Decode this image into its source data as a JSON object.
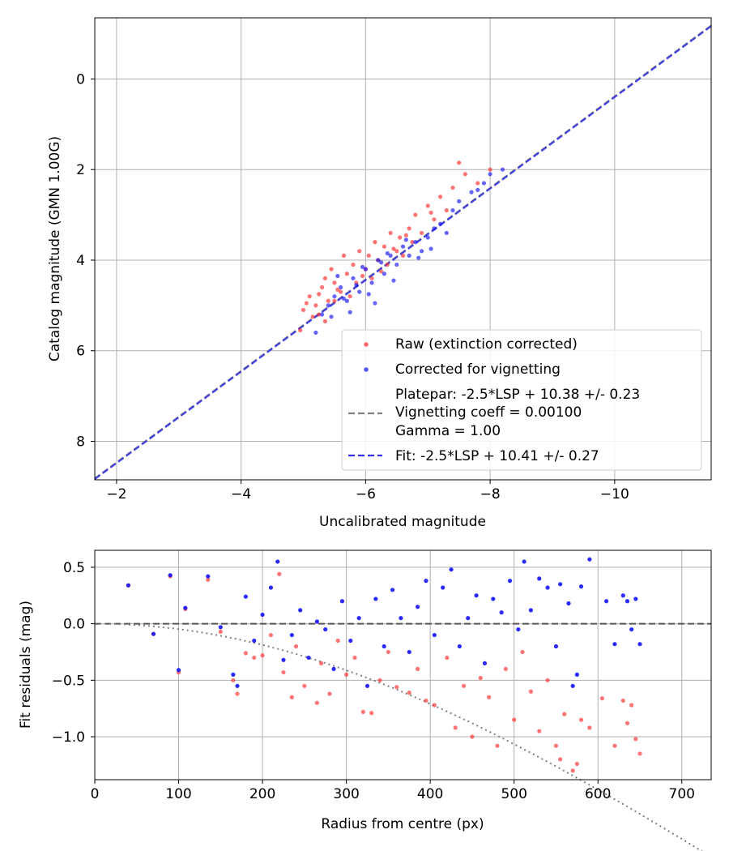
{
  "chart_data": [
    {
      "type": "scatter",
      "xlabel": "Uncalibrated magnitude",
      "ylabel": "Catalog magnitude (GMN 1.00G)",
      "xlim": [
        -1.65,
        -11.55
      ],
      "ylim": [
        8.85,
        -1.35
      ],
      "x_ticks": [
        -2,
        -4,
        -6,
        -8,
        -10
      ],
      "x_tick_labels": [
        "−2",
        "−4",
        "−6",
        "−8",
        "−10"
      ],
      "y_ticks": [
        0,
        2,
        4,
        6,
        8
      ],
      "y_tick_labels": [
        "0",
        "2",
        "4",
        "6",
        "8"
      ],
      "grid": true,
      "legend_position": "lower-right",
      "legend": {
        "raw": "Raw (extinction corrected)",
        "corrected": "Corrected for vignetting",
        "platepar_lines": [
          "Platepar: -2.5*LSP + 10.38 +/- 0.23",
          "Vignetting coeff = 0.00100",
          "Gamma = 1.00"
        ],
        "fit": "Fit: -2.5*LSP + 10.41 +/- 0.27"
      },
      "lines": [
        {
          "name": "Platepar",
          "slope": -2.5,
          "intercept": 10.38,
          "color": "#7f7f7f",
          "style": "dashed"
        },
        {
          "name": "Fit",
          "slope": -2.5,
          "intercept": 10.41,
          "color": "#3333ee",
          "style": "dashed"
        }
      ],
      "series": [
        {
          "name": "Raw (extinction corrected)",
          "color": "#ff2a2a",
          "points": [
            [
              -5.0,
              5.1
            ],
            [
              -5.1,
              4.8
            ],
            [
              -5.2,
              5.0
            ],
            [
              -5.3,
              4.6
            ],
            [
              -5.25,
              5.2
            ],
            [
              -5.35,
              4.4
            ],
            [
              -5.4,
              4.9
            ],
            [
              -5.45,
              4.2
            ],
            [
              -5.5,
              4.5
            ],
            [
              -5.6,
              4.7
            ],
            [
              -5.65,
              3.9
            ],
            [
              -5.7,
              4.3
            ],
            [
              -5.75,
              4.8
            ],
            [
              -5.8,
              4.1
            ],
            [
              -5.85,
              4.5
            ],
            [
              -5.9,
              3.8
            ],
            [
              -6.0,
              4.2
            ],
            [
              -6.05,
              3.9
            ],
            [
              -6.1,
              4.4
            ],
            [
              -6.15,
              3.6
            ],
            [
              -6.2,
              4.0
            ],
            [
              -6.3,
              3.7
            ],
            [
              -6.35,
              4.1
            ],
            [
              -6.4,
              3.4
            ],
            [
              -6.5,
              3.8
            ],
            [
              -6.55,
              3.5
            ],
            [
              -6.6,
              3.9
            ],
            [
              -6.7,
              3.3
            ],
            [
              -6.75,
              3.6
            ],
            [
              -6.8,
              3.0
            ],
            [
              -6.9,
              3.4
            ],
            [
              -7.0,
              2.8
            ],
            [
              -7.1,
              3.1
            ],
            [
              -7.2,
              2.6
            ],
            [
              -7.3,
              2.9
            ],
            [
              -7.4,
              2.4
            ],
            [
              -7.5,
              1.85
            ],
            [
              -7.6,
              2.1
            ],
            [
              -7.8,
              2.3
            ],
            [
              -8.0,
              2.0
            ],
            [
              -5.05,
              4.95
            ],
            [
              -5.55,
              4.65
            ],
            [
              -5.95,
              4.35
            ],
            [
              -6.45,
              3.75
            ],
            [
              -6.25,
              4.25
            ],
            [
              -5.35,
              5.35
            ],
            [
              -4.95,
              5.55
            ],
            [
              -5.15,
              5.25
            ],
            [
              -6.65,
              3.45
            ],
            [
              -7.05,
              2.95
            ],
            [
              -5.5,
              4.9
            ],
            [
              -5.25,
              4.75
            ]
          ]
        },
        {
          "name": "Corrected for vignetting",
          "color": "#1414ff",
          "points": [
            [
              -5.2,
              5.6
            ],
            [
              -5.3,
              5.2
            ],
            [
              -5.4,
              5.0
            ],
            [
              -5.5,
              4.8
            ],
            [
              -5.6,
              4.6
            ],
            [
              -5.7,
              4.9
            ],
            [
              -5.8,
              4.4
            ],
            [
              -5.9,
              4.7
            ],
            [
              -6.0,
              4.2
            ],
            [
              -6.1,
              4.5
            ],
            [
              -6.2,
              4.0
            ],
            [
              -6.3,
              4.3
            ],
            [
              -6.4,
              3.9
            ],
            [
              -6.5,
              4.1
            ],
            [
              -6.6,
              3.7
            ],
            [
              -6.7,
              3.9
            ],
            [
              -6.8,
              3.6
            ],
            [
              -6.9,
              3.8
            ],
            [
              -7.0,
              3.5
            ],
            [
              -7.1,
              3.3
            ],
            [
              -7.2,
              3.2
            ],
            [
              -7.3,
              3.4
            ],
            [
              -7.4,
              2.9
            ],
            [
              -7.5,
              2.7
            ],
            [
              -7.7,
              2.5
            ],
            [
              -7.9,
              2.3
            ],
            [
              -8.0,
              2.1
            ],
            [
              -8.2,
              2.0
            ],
            [
              -5.45,
              5.25
            ],
            [
              -5.65,
              4.85
            ],
            [
              -5.85,
              4.55
            ],
            [
              -6.05,
              4.75
            ],
            [
              -6.25,
              4.05
            ],
            [
              -6.45,
              4.45
            ],
            [
              -6.65,
              3.55
            ],
            [
              -6.85,
              3.95
            ],
            [
              -7.05,
              3.75
            ],
            [
              -5.55,
              4.35
            ],
            [
              -5.95,
              4.15
            ],
            [
              -6.35,
              3.85
            ],
            [
              -5.75,
              5.15
            ],
            [
              -6.15,
              4.95
            ],
            [
              -7.8,
              2.45
            ]
          ]
        }
      ]
    },
    {
      "type": "scatter",
      "xlabel": "Radius from centre (px)",
      "ylabel": "Fit residuals (mag)",
      "xlim": [
        0,
        735
      ],
      "ylim": [
        -1.38,
        0.65
      ],
      "x_ticks": [
        0,
        100,
        200,
        300,
        400,
        500,
        600,
        700
      ],
      "x_tick_labels": [
        "0",
        "100",
        "200",
        "300",
        "400",
        "500",
        "600",
        "700"
      ],
      "y_ticks": [
        0.5,
        0.0,
        -0.5,
        -1.0
      ],
      "y_tick_labels": [
        "0.5",
        "0.0",
        "−0.5",
        "−1.0"
      ],
      "grid": true,
      "zero_line": 0,
      "vignetting_curve": {
        "coeff": 0.001,
        "gamma": 1.0,
        "color": "#808080",
        "style": "dotted"
      },
      "series": [
        {
          "name": "Raw",
          "color": "#ff2a2a",
          "points": [
            [
              40,
              0.34
            ],
            [
              70,
              -0.09
            ],
            [
              90,
              0.42
            ],
            [
              100,
              -0.43
            ],
            [
              108,
              0.13
            ],
            [
              135,
              0.39
            ],
            [
              150,
              -0.07
            ],
            [
              165,
              -0.5
            ],
            [
              170,
              -0.62
            ],
            [
              180,
              -0.26
            ],
            [
              190,
              -0.3
            ],
            [
              200,
              -0.28
            ],
            [
              210,
              -0.1
            ],
            [
              220,
              0.44
            ],
            [
              225,
              -0.43
            ],
            [
              235,
              -0.65
            ],
            [
              240,
              -0.2
            ],
            [
              250,
              -0.55
            ],
            [
              265,
              -0.7
            ],
            [
              270,
              -0.35
            ],
            [
              280,
              -0.62
            ],
            [
              290,
              -0.15
            ],
            [
              300,
              -0.45
            ],
            [
              310,
              -0.3
            ],
            [
              320,
              -0.78
            ],
            [
              330,
              -0.79
            ],
            [
              340,
              -0.5
            ],
            [
              350,
              -0.25
            ],
            [
              360,
              -0.56
            ],
            [
              375,
              -0.61
            ],
            [
              385,
              -0.4
            ],
            [
              395,
              -0.68
            ],
            [
              405,
              -0.72
            ],
            [
              420,
              -0.3
            ],
            [
              430,
              -0.92
            ],
            [
              440,
              -0.55
            ],
            [
              450,
              -1.0
            ],
            [
              460,
              -0.48
            ],
            [
              470,
              -0.65
            ],
            [
              480,
              -1.08
            ],
            [
              490,
              -0.4
            ],
            [
              500,
              -0.85
            ],
            [
              510,
              -0.25
            ],
            [
              520,
              -0.6
            ],
            [
              530,
              -0.95
            ],
            [
              540,
              -0.5
            ],
            [
              550,
              -1.08
            ],
            [
              555,
              -1.2
            ],
            [
              560,
              -0.8
            ],
            [
              570,
              -1.3
            ],
            [
              575,
              -1.24
            ],
            [
              580,
              -0.85
            ],
            [
              590,
              -0.92
            ],
            [
              605,
              -0.66
            ],
            [
              620,
              -1.08
            ],
            [
              630,
              -0.68
            ],
            [
              635,
              -0.88
            ],
            [
              640,
              -0.72
            ],
            [
              645,
              -1.02
            ],
            [
              650,
              -1.15
            ]
          ]
        },
        {
          "name": "Corrected",
          "color": "#1414ff",
          "points": [
            [
              40,
              0.34
            ],
            [
              70,
              -0.09
            ],
            [
              90,
              0.43
            ],
            [
              100,
              -0.41
            ],
            [
              108,
              0.14
            ],
            [
              135,
              0.42
            ],
            [
              150,
              -0.03
            ],
            [
              165,
              -0.45
            ],
            [
              170,
              -0.55
            ],
            [
              180,
              0.24
            ],
            [
              190,
              -0.15
            ],
            [
              200,
              0.08
            ],
            [
              210,
              0.32
            ],
            [
              218,
              0.55
            ],
            [
              225,
              -0.32
            ],
            [
              235,
              -0.1
            ],
            [
              245,
              0.12
            ],
            [
              255,
              -0.3
            ],
            [
              265,
              0.02
            ],
            [
              275,
              -0.05
            ],
            [
              285,
              -0.4
            ],
            [
              295,
              0.2
            ],
            [
              305,
              -0.15
            ],
            [
              315,
              0.05
            ],
            [
              325,
              -0.55
            ],
            [
              335,
              0.22
            ],
            [
              345,
              -0.2
            ],
            [
              355,
              0.3
            ],
            [
              365,
              0.05
            ],
            [
              375,
              -0.25
            ],
            [
              385,
              0.15
            ],
            [
              395,
              0.38
            ],
            [
              405,
              -0.1
            ],
            [
              415,
              0.32
            ],
            [
              425,
              0.48
            ],
            [
              435,
              -0.2
            ],
            [
              445,
              0.05
            ],
            [
              455,
              0.25
            ],
            [
              465,
              -0.35
            ],
            [
              475,
              0.22
            ],
            [
              485,
              0.1
            ],
            [
              495,
              0.38
            ],
            [
              505,
              -0.05
            ],
            [
              512,
              0.55
            ],
            [
              520,
              0.12
            ],
            [
              530,
              0.4
            ],
            [
              540,
              0.32
            ],
            [
              550,
              -0.2
            ],
            [
              555,
              0.35
            ],
            [
              565,
              0.18
            ],
            [
              570,
              -0.55
            ],
            [
              575,
              -0.45
            ],
            [
              580,
              0.33
            ],
            [
              590,
              0.57
            ],
            [
              610,
              0.2
            ],
            [
              620,
              -0.18
            ],
            [
              630,
              0.25
            ],
            [
              635,
              0.2
            ],
            [
              640,
              -0.05
            ],
            [
              645,
              0.22
            ],
            [
              650,
              -0.18
            ]
          ]
        }
      ]
    }
  ]
}
